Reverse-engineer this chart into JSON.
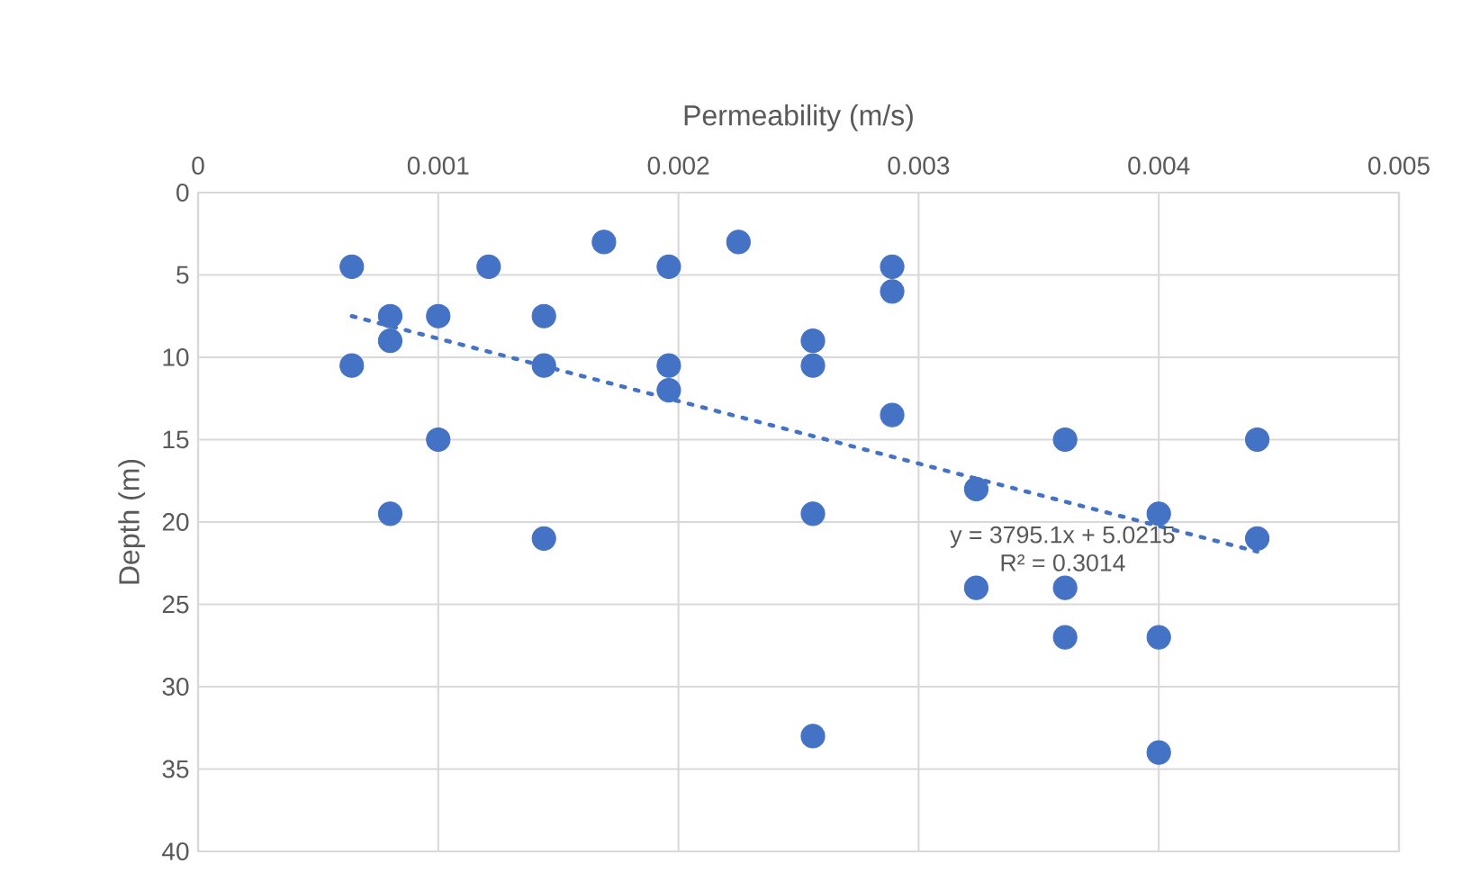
{
  "chart_data": {
    "type": "scatter",
    "xlabel": "Permeability (m/s)",
    "ylabel": "Depth (m)",
    "xlim": [
      0,
      0.005
    ],
    "xticks": [
      0,
      0.001,
      0.002,
      0.003,
      0.004,
      0.005
    ],
    "ylim": [
      40,
      0
    ],
    "yticks": [
      0,
      5,
      10,
      15,
      20,
      25,
      30,
      35,
      40
    ],
    "grid": true,
    "marker": "circle",
    "annotations": [
      "y = 3795.1x + 5.0215",
      "R² = 0.3014"
    ],
    "series": [
      {
        "color": "#4472c4",
        "x": [
          0.00064,
          0.00121,
          0.00169,
          0.00196,
          0.00225,
          0.0008,
          0.001,
          0.00144,
          0.0008,
          0.00064,
          0.00144,
          0.00196,
          0.00196,
          0.001,
          0.0008,
          0.00144,
          0.00289,
          0.00289,
          0.00256,
          0.00256,
          0.00289,
          0.00361,
          0.00441,
          0.00324,
          0.00256,
          0.004,
          0.00441,
          0.00324,
          0.00361,
          0.00361,
          0.004,
          0.00256,
          0.004
        ],
        "values": [
          4.5,
          4.5,
          3,
          4.5,
          3,
          7.5,
          7.5,
          7.5,
          9,
          10.5,
          10.5,
          10.5,
          12,
          15,
          19.5,
          21,
          4.5,
          6,
          9,
          10.5,
          13.5,
          15,
          15,
          18,
          19.5,
          19.5,
          21,
          24,
          24,
          27,
          27,
          33,
          34
        ]
      },
      {
        "type": "line",
        "color": "#4472c4",
        "line_style": "dotted",
        "marker": "none",
        "x": [
          0.00064,
          0.00441
        ],
        "values": [
          7.5,
          21.8
        ]
      }
    ]
  }
}
